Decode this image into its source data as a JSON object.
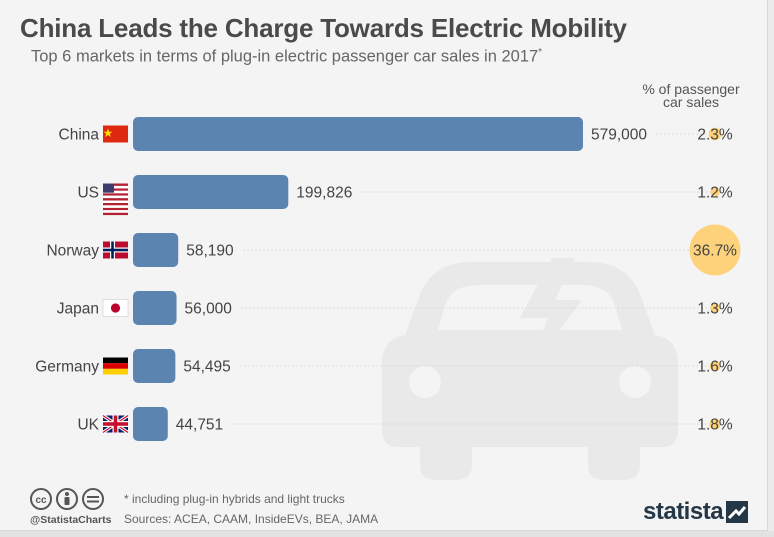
{
  "title": "China Leads the Charge Towards Electric Mobility",
  "subtitle": "Top 6 markets in terms of plug-in electric passenger car sales in 2017",
  "subtitle_mark": "*",
  "pct_header": [
    "% of passenger",
    "car sales"
  ],
  "footnote": "* including plug-in hybrids and light trucks",
  "sources": "Sources: ACEA, CAAM, InsideEVs, BEA, JAMA",
  "handle": "@StatistaCharts",
  "logo": "statista",
  "colors": {
    "bar": "#5b84b1",
    "bubble": "#fdd27a",
    "title": "#4a4a4a",
    "background": "#f4f4f4"
  },
  "icons": [
    "cc-icon",
    "attribution-icon",
    "no-derivatives-icon",
    "electric-car-icon",
    "statista-logo-icon"
  ],
  "chart_data": {
    "type": "bar",
    "orientation": "horizontal",
    "categories": [
      "China",
      "US",
      "Norway",
      "Japan",
      "Germany",
      "UK"
    ],
    "flags": [
      "china-flag-icon",
      "us-flag-icon",
      "norway-flag-icon",
      "japan-flag-icon",
      "germany-flag-icon",
      "uk-flag-icon"
    ],
    "values": [
      579000,
      199826,
      58190,
      56000,
      54495,
      44751
    ],
    "value_labels": [
      "579,000",
      "199,826",
      "58,190",
      "56,000",
      "54,495",
      "44,751"
    ],
    "share": [
      2.3,
      1.2,
      36.7,
      1.3,
      1.6,
      1.8
    ],
    "share_labels": [
      "2.3%",
      "1.2%",
      "36.7%",
      "1.3%",
      "1.6%",
      "1.8%"
    ],
    "grid": false
  }
}
